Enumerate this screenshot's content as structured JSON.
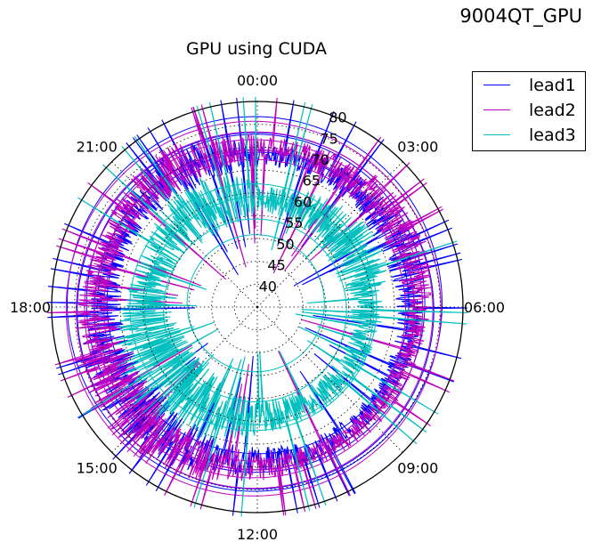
{
  "figure": {
    "corner_title": "9004QT_GPU",
    "title": "GPU using CUDA"
  },
  "legend": {
    "placement": "top-right",
    "items": [
      {
        "label": "lead1",
        "color": "#0000ff"
      },
      {
        "label": "lead2",
        "color": "#bf00bf"
      },
      {
        "label": "lead3",
        "color": "#00bfbf"
      }
    ]
  },
  "chart_data": {
    "type": "polar-line",
    "title": "GPU using CUDA",
    "angle_tick_labels": [
      "00:00",
      "03:00",
      "06:00",
      "09:00",
      "12:00",
      "15:00",
      "18:00",
      "21:00"
    ],
    "angle_direction": "clockwise from top",
    "radial_tick_labels": [
      "40",
      "45",
      "50",
      "55",
      "60",
      "65",
      "70",
      "75",
      "80"
    ],
    "radial_range": [
      35,
      80
    ],
    "grid": true,
    "series": [
      {
        "name": "lead1",
        "color": "#0000ff",
        "typical_range": [
          62,
          78
        ],
        "peak": 81
      },
      {
        "name": "lead2",
        "color": "#bf00bf",
        "typical_range": [
          63,
          80
        ],
        "peak": 81
      },
      {
        "name": "lead3",
        "color": "#00bfbf",
        "typical_range": [
          50,
          72
        ],
        "peak": 81
      }
    ]
  }
}
